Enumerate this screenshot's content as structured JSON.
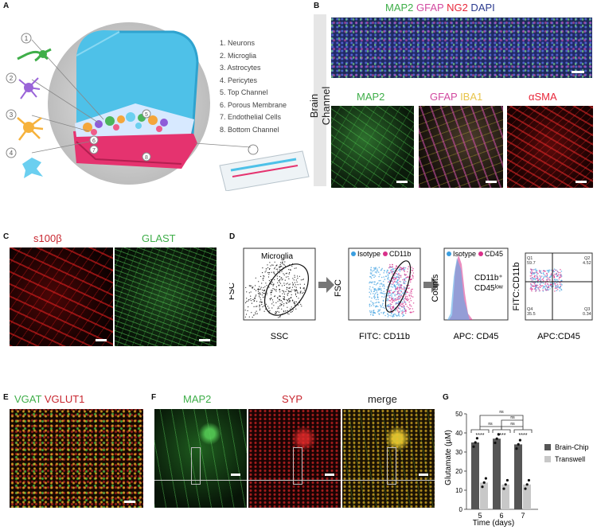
{
  "panels": {
    "A": "A",
    "B": "B",
    "C": "C",
    "D": "D",
    "E": "E",
    "F": "F",
    "G": "G"
  },
  "panelA": {
    "legend": [
      "1.   Neurons",
      "2.   Microglia",
      "3.   Astrocytes",
      "4.   Pericytes",
      "5.   Top Channel",
      "6.   Porous Membrane",
      "7.   Endothelial Cells",
      "8.   Bottom Channel"
    ],
    "callouts": [
      "1",
      "2",
      "3",
      "4",
      "5",
      "6",
      "7",
      "8"
    ]
  },
  "panelB": {
    "side_label": "Brain Channel",
    "top": [
      {
        "t": "MAP2",
        "c": "#3fae49"
      },
      {
        "t": " GFAP",
        "c": "#d24aa0"
      },
      {
        "t": " NG2",
        "c": "#e8273a"
      },
      {
        "t": " DAPI",
        "c": "#2b3b8f"
      }
    ],
    "sub1": [
      {
        "t": "MAP2",
        "c": "#3fae49"
      }
    ],
    "sub2": [
      {
        "t": "GFAP",
        "c": "#d24aa0"
      },
      {
        "t": " IBA1",
        "c": "#e8c44a"
      }
    ],
    "sub3": [
      {
        "t": "αSMA",
        "c": "#e8273a"
      }
    ]
  },
  "panelC": {
    "label1": "s100β",
    "label1_color": "#c8262f",
    "label2": "GLAST",
    "label2_color": "#3fae49"
  },
  "panelD": {
    "gate1": "Microglia",
    "plot1": {
      "x": "SSC",
      "y": "FSC"
    },
    "plot2": {
      "x": "FITC: CD11b",
      "y": "FSC",
      "leg1": "Isotype",
      "leg2": "CD11b"
    },
    "plot3": {
      "x": "APC: CD45",
      "y": "Counts",
      "leg1": "Isotype",
      "leg2": "CD45",
      "annot1": "CD11b⁺",
      "annot2": "CD45ˡᵒʷ"
    },
    "plot4": {
      "x": "APC:CD45",
      "y": "FITC:CD11b",
      "q1": "Q1",
      "q1v": "59.7",
      "q2": "Q2",
      "q2v": "4.52",
      "q3": "Q3",
      "q3v": "0.34",
      "q4": "Q4",
      "q4v": "35.5"
    }
  },
  "panelE": {
    "l1": "VGAT",
    "l1c": "#3fae49",
    "l2": " VGLUT1",
    "l2c": "#c8262f"
  },
  "panelF": {
    "l1": "MAP2",
    "l1c": "#3fae49",
    "l2": "SYP",
    "l2c": "#c8262f",
    "l3": "merge",
    "l3c": "#222"
  },
  "panelG": {
    "ylabel": "Glutamate (µM)",
    "xlabel": "Time (days)",
    "legend": [
      {
        "name": "Brain-Chip",
        "color": "#555555"
      },
      {
        "name": "Transwell",
        "color": "#c8c8c8"
      }
    ],
    "sig_stars": "****",
    "ns": "ns"
  },
  "chart_data": {
    "type": "bar",
    "categories": [
      "5",
      "6",
      "7"
    ],
    "series": [
      {
        "name": "Brain-Chip",
        "values": [
          35,
          37,
          34
        ]
      },
      {
        "name": "Transwell",
        "values": [
          14,
          13,
          13
        ]
      }
    ],
    "ylim": [
      0,
      50
    ],
    "yticks": [
      0,
      10,
      20,
      30,
      40,
      50
    ],
    "xlabel": "Time (days)",
    "ylabel": "Glutamate (µM)"
  }
}
